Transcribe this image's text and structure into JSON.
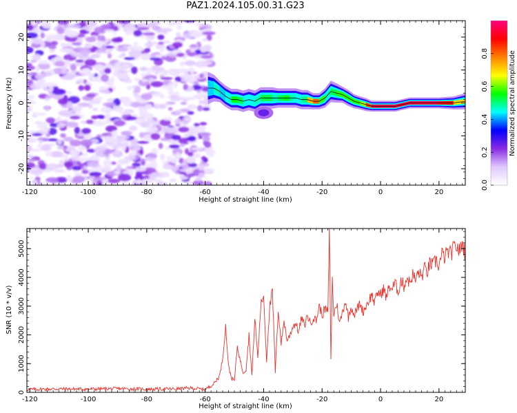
{
  "title": "PAZ1.2024.105.00.31.G23",
  "colorbar": {
    "label": "Normalized spectral amplitude",
    "ticks": [
      "0.0",
      "0.2",
      "0.4",
      "0.6",
      "0.8"
    ],
    "stops": [
      "#ffffff",
      "#e0c8ff",
      "#8a2be2",
      "#0000ff",
      "#00ffff",
      "#00ff00",
      "#ffff00",
      "#ff8000",
      "#ff0000",
      "#ff0080"
    ]
  },
  "colors": {
    "snr_line": "#e8312a",
    "frame": "#000000"
  },
  "chart_data": [
    {
      "type": "heatmap",
      "title": "",
      "xlabel": "Height of straight line (km)",
      "ylabel": "Frequency (Hz)",
      "xlim": [
        -121,
        29
      ],
      "ylim": [
        -25,
        25
      ],
      "x_ticks": [
        "-120",
        "-100",
        "-80",
        "-60",
        "-40",
        "-20",
        "0",
        "20"
      ],
      "y_ticks": [
        "-20",
        "-10",
        "0",
        "10",
        "20"
      ],
      "noise_region": {
        "x": [
          -120,
          -59
        ],
        "level": 0.12
      },
      "ridge": {
        "x": [
          -59,
          -57,
          -55,
          -53,
          -51,
          -49,
          -47,
          -45,
          -43,
          -41,
          -39,
          -37,
          -35,
          -33,
          -31,
          -29,
          -27,
          -25,
          -23,
          -21,
          -19,
          -17,
          -15,
          -13,
          -11,
          -9,
          -7,
          -5,
          -3,
          0,
          5,
          10,
          15,
          20,
          25,
          29
        ],
        "freq": [
          4.5,
          4.5,
          3.5,
          2.0,
          1.0,
          1.0,
          0.5,
          1.0,
          0.5,
          1.5,
          1.5,
          1.5,
          1.5,
          1.5,
          1.5,
          1.5,
          1.0,
          1.0,
          0.5,
          0.5,
          1.5,
          3.5,
          3.0,
          2.5,
          1.5,
          0.5,
          0.0,
          -0.5,
          -1.0,
          -1.0,
          -1.0,
          0.0,
          0.0,
          0.0,
          0.0,
          0.5
        ],
        "amp": [
          0.35,
          0.5,
          0.45,
          0.4,
          0.5,
          0.6,
          0.45,
          0.45,
          0.45,
          0.5,
          0.55,
          0.5,
          0.45,
          0.6,
          0.5,
          0.45,
          0.45,
          0.55,
          0.9,
          0.7,
          0.45,
          0.5,
          0.55,
          0.6,
          0.55,
          0.6,
          0.55,
          0.7,
          0.95,
          0.95,
          0.95,
          0.95,
          0.95,
          0.95,
          0.8,
          0.6
        ],
        "width": [
          3.0,
          2.5,
          2.0,
          2.0,
          2.0,
          2.0,
          2.0,
          2.0,
          2.0,
          2.0,
          2.0,
          2.0,
          1.8,
          1.8,
          1.8,
          1.8,
          1.8,
          1.8,
          1.5,
          1.5,
          1.8,
          2.0,
          1.8,
          1.5,
          1.5,
          1.3,
          1.2,
          1.2,
          1.0,
          1.0,
          1.0,
          1.0,
          1.0,
          1.0,
          1.2,
          1.5
        ]
      },
      "blob": {
        "x": -40,
        "freq": -3,
        "amp": 0.25
      }
    },
    {
      "type": "line",
      "title": "",
      "xlabel": "Height of straight line (km)",
      "ylabel": "SNR (10 * v/v)",
      "xlim": [
        -121,
        29
      ],
      "ylim": [
        0,
        5700
      ],
      "x_ticks": [
        "-120",
        "-100",
        "-80",
        "-60",
        "-40",
        "-20",
        "0",
        "20"
      ],
      "y_ticks": [
        "0",
        "1000",
        "2000",
        "3000",
        "4000",
        "5000"
      ],
      "series": [
        {
          "x": [
            -121,
            -110,
            -100,
            -90,
            -80,
            -70,
            -65,
            -60,
            -57,
            -55,
            -54,
            -53,
            -52,
            -51,
            -50,
            -49,
            -48,
            -47,
            -46,
            -45,
            -44,
            -43,
            -42,
            -41,
            -40,
            -39,
            -38,
            -37,
            -36,
            -35,
            -34,
            -33,
            -32,
            -31,
            -30,
            -29,
            -28,
            -27,
            -26,
            -25,
            -24,
            -23,
            -22,
            -21,
            -20,
            -19,
            -18,
            -17.5,
            -17,
            -16.5,
            -16,
            -15,
            -14,
            -13,
            -12,
            -11,
            -10,
            -9,
            -8,
            -7,
            -6,
            -5,
            -4,
            -3,
            -2,
            -1,
            0,
            1,
            2,
            3,
            4,
            5,
            6,
            7,
            8,
            9,
            10,
            11,
            12,
            13,
            14,
            15,
            16,
            17,
            18,
            19,
            20,
            21,
            22,
            23,
            24,
            25,
            26,
            27,
            28,
            29
          ],
          "y": [
            100,
            120,
            110,
            130,
            110,
            120,
            150,
            100,
            300,
            600,
            1200,
            2300,
            900,
            500,
            400,
            1600,
            1100,
            700,
            800,
            2000,
            600,
            2600,
            1200,
            3000,
            3400,
            1100,
            2900,
            3500,
            700,
            2900,
            1700,
            2500,
            1800,
            2000,
            2300,
            2400,
            2100,
            2600,
            2300,
            2700,
            2400,
            2600,
            2500,
            3000,
            2700,
            2900,
            2800,
            5600,
            1200,
            3900,
            2700,
            3100,
            2400,
            2800,
            3200,
            2600,
            3000,
            2700,
            2900,
            3100,
            2800,
            3000,
            3200,
            3400,
            3100,
            3500,
            3400,
            3600,
            3300,
            3700,
            3600,
            3800,
            3500,
            3900,
            3700,
            4000,
            3800,
            4100,
            3900,
            4200,
            4000,
            4300,
            4200,
            4500,
            4400,
            4600,
            4400,
            4800,
            4700,
            4900,
            4800,
            5000,
            5100,
            4900,
            5200,
            4800
          ]
        }
      ]
    }
  ]
}
